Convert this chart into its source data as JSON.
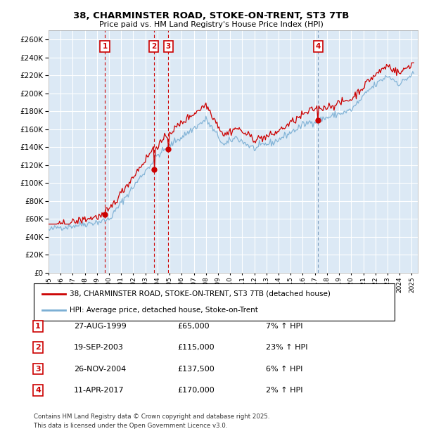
{
  "title_line1": "38, CHARMINSTER ROAD, STOKE-ON-TRENT, ST3 7TB",
  "title_line2": "Price paid vs. HM Land Registry's House Price Index (HPI)",
  "ylim": [
    0,
    270000
  ],
  "yticks": [
    0,
    20000,
    40000,
    60000,
    80000,
    100000,
    120000,
    140000,
    160000,
    180000,
    200000,
    220000,
    240000,
    260000
  ],
  "bg_color": "#dce9f5",
  "grid_color": "#ffffff",
  "red_color": "#cc0000",
  "blue_color": "#7bafd4",
  "purchases": [
    {
      "num": 1,
      "date_str": "27-AUG-1999",
      "year": 1999.65,
      "price": 65000,
      "pct": "7%",
      "dir": "↑"
    },
    {
      "num": 2,
      "date_str": "19-SEP-2003",
      "year": 2003.71,
      "price": 115000,
      "pct": "23%",
      "dir": "↑"
    },
    {
      "num": 3,
      "date_str": "26-NOV-2004",
      "year": 2004.9,
      "price": 137500,
      "pct": "6%",
      "dir": "↑"
    },
    {
      "num": 4,
      "date_str": "11-APR-2017",
      "year": 2017.27,
      "price": 170000,
      "pct": "2%",
      "dir": "↑"
    }
  ],
  "legend_label_red": "38, CHARMINSTER ROAD, STOKE-ON-TRENT, ST3 7TB (detached house)",
  "legend_label_blue": "HPI: Average price, detached house, Stoke-on-Trent",
  "footer_line1": "Contains HM Land Registry data © Crown copyright and database right 2025.",
  "footer_line2": "This data is licensed under the Open Government Licence v3.0.",
  "xmin": 1995.0,
  "xmax": 2025.5
}
